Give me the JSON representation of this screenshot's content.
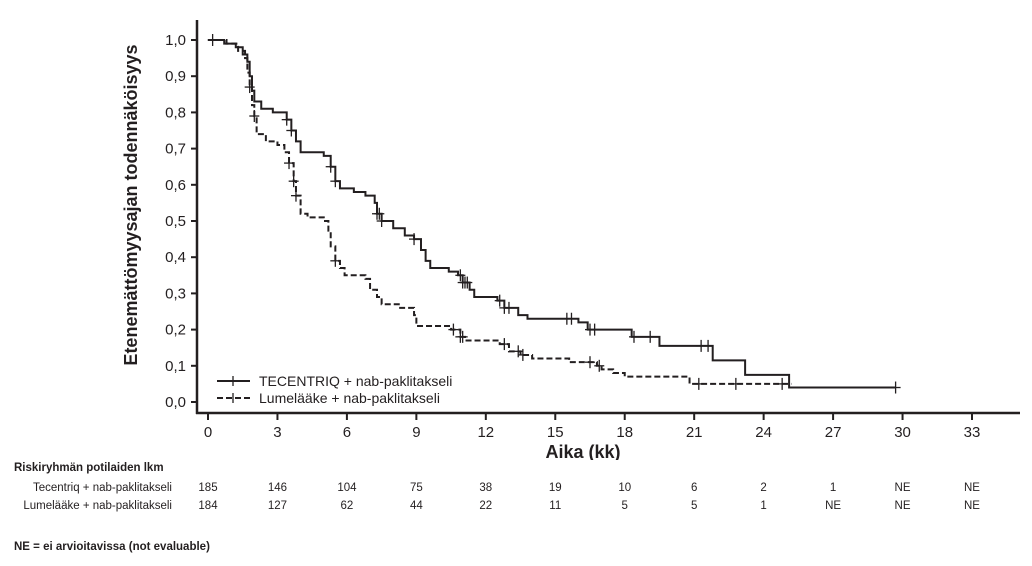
{
  "chart_data": {
    "type": "line",
    "subtype": "kaplan-meier",
    "title": "",
    "xlabel": "Aika (kk)",
    "ylabel": "Etenemättömyysajan todennäköisyys",
    "xlim": [
      0,
      34
    ],
    "ylim": [
      0,
      1.05
    ],
    "xticks": [
      0,
      3,
      6,
      9,
      12,
      15,
      18,
      21,
      24,
      27,
      30,
      33
    ],
    "xtick_labels": [
      "0",
      "3",
      "6",
      "9",
      "12",
      "15",
      "18",
      "21",
      "24",
      "27",
      "30",
      "33"
    ],
    "yticks": [
      0,
      0.1,
      0.2,
      0.3,
      0.4,
      0.5,
      0.6,
      0.7,
      0.8,
      0.9,
      1.0
    ],
    "ytick_labels": [
      "0,0",
      "0,1",
      "0,2",
      "0,3",
      "0,4",
      "0,5",
      "0,6",
      "0,7",
      "0,8",
      "0,9",
      "1,0"
    ],
    "grid": false,
    "legend_position": "bottom-left",
    "series": [
      {
        "name": "TECENTRIQ + nab-paklitakseli",
        "style": "solid",
        "steps": [
          [
            0,
            1.0
          ],
          [
            0.7,
            0.99
          ],
          [
            1.2,
            0.98
          ],
          [
            1.5,
            0.96
          ],
          [
            1.7,
            0.94
          ],
          [
            1.8,
            0.9
          ],
          [
            1.9,
            0.86
          ],
          [
            2.0,
            0.83
          ],
          [
            2.3,
            0.81
          ],
          [
            2.8,
            0.8
          ],
          [
            3.4,
            0.78
          ],
          [
            3.6,
            0.75
          ],
          [
            3.8,
            0.72
          ],
          [
            4.0,
            0.69
          ],
          [
            5.0,
            0.68
          ],
          [
            5.3,
            0.65
          ],
          [
            5.5,
            0.61
          ],
          [
            5.7,
            0.59
          ],
          [
            6.3,
            0.58
          ],
          [
            6.8,
            0.57
          ],
          [
            7.2,
            0.55
          ],
          [
            7.3,
            0.52
          ],
          [
            7.5,
            0.5
          ],
          [
            8.0,
            0.48
          ],
          [
            8.5,
            0.46
          ],
          [
            8.9,
            0.45
          ],
          [
            9.2,
            0.42
          ],
          [
            9.4,
            0.39
          ],
          [
            9.6,
            0.37
          ],
          [
            10.4,
            0.36
          ],
          [
            10.8,
            0.35
          ],
          [
            11.0,
            0.33
          ],
          [
            11.3,
            0.31
          ],
          [
            11.5,
            0.29
          ],
          [
            12.5,
            0.28
          ],
          [
            12.8,
            0.26
          ],
          [
            13.4,
            0.24
          ],
          [
            13.8,
            0.23
          ],
          [
            16.0,
            0.22
          ],
          [
            16.4,
            0.2
          ],
          [
            18.3,
            0.18
          ],
          [
            19.5,
            0.155
          ],
          [
            21.8,
            0.115
          ],
          [
            23.2,
            0.075
          ],
          [
            25.1,
            0.04
          ]
        ],
        "end": 29.7,
        "censored": [
          0.2,
          3.4,
          3.6,
          5.3,
          5.5,
          7.3,
          7.4,
          7.5,
          8.9,
          10.9,
          11.0,
          11.1,
          11.2,
          12.6,
          12.8,
          13.0,
          15.5,
          15.7,
          16.5,
          16.7,
          18.4,
          19.1,
          21.3,
          21.6,
          29.7
        ]
      },
      {
        "name": "Lumelääke + nab-paklitakseli",
        "style": "dashed",
        "steps": [
          [
            0,
            1.0
          ],
          [
            0.8,
            0.99
          ],
          [
            1.3,
            0.97
          ],
          [
            1.6,
            0.95
          ],
          [
            1.7,
            0.91
          ],
          [
            1.8,
            0.87
          ],
          [
            1.9,
            0.82
          ],
          [
            2.0,
            0.79
          ],
          [
            2.1,
            0.74
          ],
          [
            2.5,
            0.72
          ],
          [
            3.0,
            0.71
          ],
          [
            3.3,
            0.69
          ],
          [
            3.5,
            0.66
          ],
          [
            3.7,
            0.61
          ],
          [
            3.8,
            0.57
          ],
          [
            4.0,
            0.52
          ],
          [
            4.3,
            0.51
          ],
          [
            5.0,
            0.5
          ],
          [
            5.2,
            0.47
          ],
          [
            5.3,
            0.43
          ],
          [
            5.5,
            0.39
          ],
          [
            5.7,
            0.37
          ],
          [
            5.9,
            0.35
          ],
          [
            6.8,
            0.34
          ],
          [
            7.0,
            0.31
          ],
          [
            7.3,
            0.29
          ],
          [
            7.5,
            0.27
          ],
          [
            8.3,
            0.26
          ],
          [
            8.9,
            0.24
          ],
          [
            9.0,
            0.21
          ],
          [
            10.2,
            0.21
          ],
          [
            10.5,
            0.2
          ],
          [
            10.9,
            0.18
          ],
          [
            11.1,
            0.17
          ],
          [
            12.6,
            0.16
          ],
          [
            13.0,
            0.14
          ],
          [
            13.5,
            0.13
          ],
          [
            14.0,
            0.12
          ],
          [
            15.6,
            0.11
          ],
          [
            16.8,
            0.1
          ],
          [
            17.0,
            0.09
          ],
          [
            17.5,
            0.08
          ],
          [
            18.0,
            0.07
          ],
          [
            20.8,
            0.05
          ]
        ],
        "end": 25.2,
        "censored": [
          1.8,
          2.0,
          3.5,
          3.7,
          3.8,
          5.5,
          10.6,
          10.9,
          11.0,
          12.8,
          13.4,
          13.6,
          16.5,
          16.9,
          21.2,
          22.8,
          24.8
        ]
      }
    ]
  },
  "risk_table": {
    "title": "Riskiryhmän potilaiden lkm",
    "times": [
      0,
      3,
      6,
      9,
      12,
      15,
      18,
      21,
      24,
      27,
      30,
      33
    ],
    "rows": [
      {
        "label": "Tecentriq + nab-paklitakseli",
        "values": [
          "185",
          "146",
          "104",
          "75",
          "38",
          "19",
          "10",
          "6",
          "2",
          "1",
          "NE",
          "NE"
        ]
      },
      {
        "label": "Lumelääke + nab-paklitakseli",
        "values": [
          "184",
          "127",
          "62",
          "44",
          "22",
          "11",
          "5",
          "5",
          "1",
          "NE",
          "NE",
          "NE"
        ]
      }
    ]
  },
  "footnote": "NE = ei arvioitavissa (not evaluable)"
}
